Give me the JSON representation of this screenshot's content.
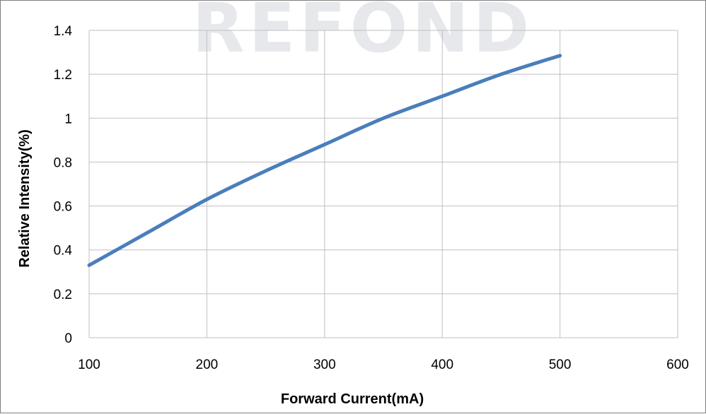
{
  "watermark": "REFOND",
  "chart_data": {
    "type": "line",
    "title": "",
    "xlabel": "Forward Current(mA)",
    "ylabel": "Relative Intensity(%)",
    "xlim": [
      100,
      600
    ],
    "ylim": [
      0,
      1.4
    ],
    "x_ticks": [
      100,
      200,
      300,
      400,
      500,
      600
    ],
    "y_ticks": [
      0,
      0.2,
      0.4,
      0.6,
      0.8,
      1,
      1.2,
      1.4
    ],
    "y_tick_labels": [
      "0",
      "0.2",
      "0.4",
      "0.6",
      "0.8",
      "1",
      "1.2",
      "1.4"
    ],
    "grid": true,
    "legend": "none",
    "series": [
      {
        "color": "#4a7ebb",
        "x": [
          100,
          150,
          200,
          250,
          300,
          350,
          400,
          450,
          500
        ],
        "y": [
          0.33,
          0.48,
          0.63,
          0.76,
          0.88,
          1.0,
          1.1,
          1.2,
          1.285
        ]
      }
    ]
  }
}
